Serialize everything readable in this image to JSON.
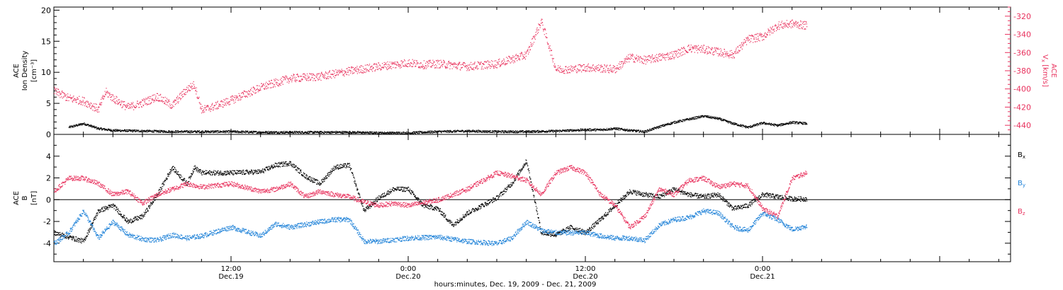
{
  "figure": {
    "xlabel": "hours:minutes, Dec. 19, 2009 - Dec. 21, 2009",
    "x_ticks": [
      {
        "hours": 12,
        "time": "12:00",
        "date": "Dec.19"
      },
      {
        "hours": 24,
        "time": "0:00",
        "date": "Dec.20"
      },
      {
        "hours": 36,
        "time": "12:00",
        "date": "Dec.20"
      },
      {
        "hours": 48,
        "time": "0:00",
        "date": "Dec.21"
      }
    ],
    "x_range_hours": [
      0,
      64.8
    ]
  },
  "colors": {
    "black": "#000000",
    "red": "#e8325e",
    "blue": "#1f82d8",
    "axis": "#000000"
  },
  "chart_data": [
    {
      "type": "scatter",
      "title": "",
      "ylabel_left": [
        "ACE",
        "Ion Density",
        "[cm⁻³]"
      ],
      "ylabel_right": [
        "ACE",
        "V",
        "x",
        "[km/s]"
      ],
      "left_axis": {
        "ylim": [
          0,
          20.5
        ],
        "ticks": [
          0,
          5,
          10,
          15,
          20
        ],
        "tick_labels": [
          "0",
          "5",
          "10",
          "15",
          "20"
        ]
      },
      "right_axis": {
        "ylim": [
          -450,
          -310
        ],
        "ticks": [
          -440,
          -420,
          -400,
          -380,
          -360,
          -340,
          -320
        ],
        "tick_labels": [
          "-440",
          "-420",
          "-400",
          "-380",
          "-360",
          "-340",
          "-320"
        ]
      },
      "x_unit": "hours since Dec. 19, 2009 00:00",
      "series": [
        {
          "axis": "left",
          "color": "#000000",
          "x": [
            1,
            2,
            3,
            4,
            6,
            8,
            10,
            12,
            14,
            16,
            18,
            20,
            22,
            24,
            26,
            28,
            30,
            32,
            34,
            36,
            37,
            38,
            39,
            40,
            41,
            42,
            43,
            44,
            45,
            46,
            47,
            48,
            49,
            50,
            51
          ],
          "y": [
            1.2,
            1.8,
            1.0,
            0.7,
            0.6,
            0.5,
            0.5,
            0.5,
            0.4,
            0.4,
            0.4,
            0.4,
            0.3,
            0.3,
            0.5,
            0.6,
            0.5,
            0.5,
            0.6,
            0.8,
            0.8,
            1.0,
            0.7,
            0.5,
            1.3,
            2.0,
            2.5,
            3.0,
            2.6,
            1.8,
            1.2,
            1.9,
            1.5,
            2.0,
            1.8
          ]
        },
        {
          "axis": "right",
          "color": "#e8325e",
          "x": [
            0,
            1,
            2,
            3,
            3.5,
            4,
            5,
            6,
            7,
            8,
            9,
            9.5,
            10,
            11,
            12,
            14,
            16,
            18,
            20,
            22,
            24,
            25,
            26,
            28,
            30,
            32,
            33,
            34,
            35,
            36,
            38,
            39,
            40,
            42,
            43,
            44,
            46,
            47,
            48,
            49,
            50,
            51
          ],
          "y": [
            -402,
            -410,
            -413,
            -422,
            -403,
            -410,
            -420,
            -415,
            -408,
            -418,
            -400,
            -395,
            -423,
            -418,
            -412,
            -398,
            -388,
            -386,
            -380,
            -375,
            -371,
            -373,
            -372,
            -375,
            -372,
            -362,
            -325,
            -378,
            -378,
            -376,
            -378,
            -365,
            -368,
            -362,
            -355,
            -356,
            -362,
            -345,
            -342,
            -330,
            -328,
            -330
          ]
        }
      ]
    },
    {
      "type": "scatter",
      "title": "",
      "ylabel": [
        "ACE",
        "B",
        "[nT]"
      ],
      "ylim": [
        -5.7,
        6.0
      ],
      "y_ticks": [
        -4,
        -2,
        0,
        2,
        4
      ],
      "y_tick_labels": [
        "-4",
        "-2",
        "0",
        "2",
        "4"
      ],
      "zero_line": true,
      "x_unit": "hours since Dec. 19, 2009 00:00",
      "series": [
        {
          "name": "B",
          "sub": "x",
          "color": "#000000",
          "x": [
            0,
            1,
            2,
            3,
            4,
            5,
            6,
            7,
            8,
            9,
            9.5,
            10,
            12,
            14,
            15,
            16,
            17,
            18,
            19,
            20,
            21,
            22,
            23,
            24,
            25,
            26,
            27,
            28,
            29,
            30,
            31,
            32,
            33,
            34,
            35,
            36,
            37,
            38,
            39,
            40,
            41,
            42,
            43,
            44,
            45,
            46,
            47,
            48,
            49,
            50,
            51
          ],
          "y": [
            -3.0,
            -3.4,
            -3.8,
            -1.0,
            -0.5,
            -2.0,
            -1.5,
            0.5,
            3.0,
            1.5,
            3.0,
            2.5,
            2.5,
            2.6,
            3.2,
            3.4,
            2.2,
            1.5,
            3.0,
            3.2,
            -1.0,
            0.2,
            1.0,
            1.0,
            -0.5,
            -0.8,
            -2.3,
            -1.2,
            -0.5,
            0.2,
            1.5,
            3.6,
            -3.0,
            -3.2,
            -2.5,
            -3.0,
            -1.8,
            -0.5,
            0.8,
            0.5,
            0.3,
            1.0,
            0.5,
            0.3,
            0.5,
            -0.8,
            -0.5,
            0.5,
            0.3,
            0.1,
            0.1
          ]
        },
        {
          "name": "B",
          "sub": "y",
          "color": "#1f82d8",
          "x": [
            0,
            1,
            2,
            3,
            4,
            5,
            6,
            7,
            8,
            9,
            10,
            12,
            14,
            15,
            16,
            18,
            19,
            20,
            21,
            22,
            24,
            26,
            28,
            30,
            31,
            32,
            33,
            34,
            36,
            37,
            38,
            39,
            40,
            41,
            42,
            43,
            44,
            45,
            46,
            47,
            48,
            49,
            50,
            51
          ],
          "y": [
            -4.0,
            -3.0,
            -1.0,
            -3.5,
            -2.0,
            -3.2,
            -3.6,
            -3.7,
            -3.2,
            -3.5,
            -3.3,
            -2.5,
            -3.3,
            -2.2,
            -2.5,
            -2.0,
            -1.8,
            -1.8,
            -3.8,
            -3.8,
            -3.5,
            -3.4,
            -3.8,
            -4.0,
            -3.5,
            -2.0,
            -2.8,
            -3.0,
            -3.0,
            -3.3,
            -3.5,
            -3.5,
            -3.7,
            -2.3,
            -1.8,
            -1.6,
            -1.0,
            -1.2,
            -2.5,
            -2.8,
            -1.2,
            -1.8,
            -2.7,
            -2.4
          ]
        },
        {
          "name": "B",
          "sub": "z",
          "color": "#e8325e",
          "x": [
            0,
            1,
            2,
            3,
            4,
            5,
            6,
            7,
            8,
            9,
            10,
            12,
            14,
            15,
            16,
            17,
            18,
            19,
            20,
            21,
            22,
            23,
            24,
            26,
            28,
            30,
            31,
            32,
            33,
            34,
            35,
            36,
            37,
            38,
            39,
            40,
            41,
            42,
            43,
            44,
            45,
            46,
            47,
            48,
            49,
            50,
            51
          ],
          "y": [
            0.8,
            2.0,
            2.0,
            1.5,
            0.5,
            0.8,
            -0.3,
            0.5,
            1.0,
            1.5,
            1.2,
            1.5,
            0.8,
            1.0,
            1.5,
            0.3,
            0.8,
            0.5,
            0.3,
            -0.2,
            -0.5,
            -0.3,
            -0.5,
            0.0,
            1.0,
            2.5,
            2.2,
            1.8,
            0.5,
            2.5,
            3.0,
            2.5,
            0.5,
            -0.5,
            -2.5,
            -1.5,
            1.0,
            0.5,
            1.8,
            2.0,
            1.2,
            1.5,
            1.3,
            -0.8,
            -1.5,
            2.0,
            2.5
          ]
        }
      ]
    }
  ]
}
